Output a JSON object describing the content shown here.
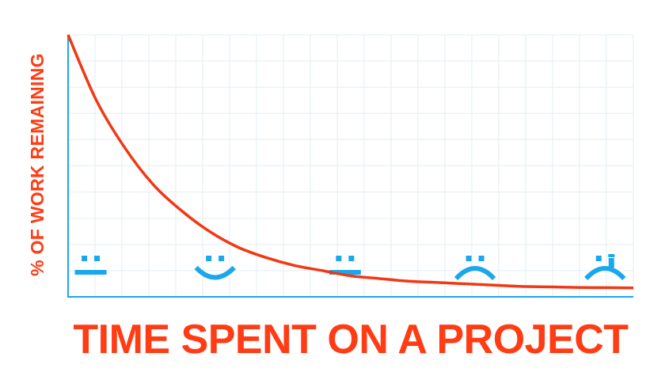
{
  "chart_data": {
    "type": "line",
    "title": "",
    "xlabel": "TIME SPENT ON A PROJECT",
    "ylabel": "% OF WORK REMAINING",
    "xlim": [
      0,
      1
    ],
    "ylim": [
      0,
      100
    ],
    "grid": true,
    "series": [
      {
        "color": "#f23714",
        "x": [
          0,
          0.05,
          0.1,
          0.15,
          0.2,
          0.25,
          0.3,
          0.35,
          0.4,
          0.45,
          0.5,
          0.55,
          0.6,
          0.65,
          0.7,
          0.75,
          0.8,
          0.85,
          0.9,
          0.95,
          1.0
        ],
        "y": [
          100,
          75,
          57,
          43,
          33,
          25,
          19,
          15,
          12,
          10,
          8,
          7,
          6,
          5.5,
          5,
          4.5,
          4,
          3.8,
          3.6,
          3.5,
          3.4
        ]
      }
    ],
    "annotations": [
      {
        "icon": "neutral-face-icon",
        "x": 0.04
      },
      {
        "icon": "smiley-face-icon",
        "x": 0.26
      },
      {
        "icon": "neutral-face-icon",
        "x": 0.49
      },
      {
        "icon": "sad-face-icon",
        "x": 0.72
      },
      {
        "icon": "crying-face-icon",
        "x": 0.95
      }
    ]
  },
  "colors": {
    "curve": "#f23714",
    "label": "#ff3c14",
    "axis": "#1aa7ec",
    "face": "#1aa7ec",
    "grid": "#e3eef3"
  }
}
